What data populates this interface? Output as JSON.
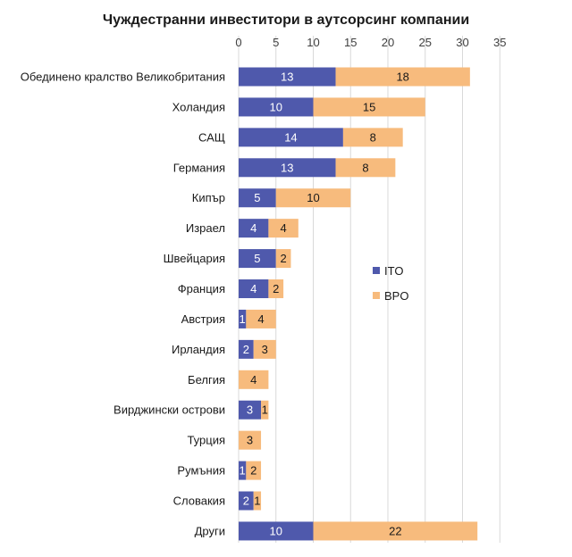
{
  "chart_data": {
    "type": "bar",
    "orientation": "horizontal",
    "stacked": true,
    "title": "Чуждестранни инвеститори в аутсорсинг компании",
    "categories": [
      "Обединено кралство Великобритания",
      "Холандия",
      "САЩ",
      "Германия",
      "Кипър",
      "Израел",
      "Швейцария",
      "Франция",
      "Австрия",
      "Ирландия",
      "Белгия",
      "Вирджински острови",
      "Турция",
      "Румъния",
      "Словакия",
      "Други"
    ],
    "series": [
      {
        "name": "ITO",
        "color": "#4f59ac",
        "values": [
          13,
          10,
          14,
          13,
          5,
          4,
          5,
          4,
          1,
          2,
          0,
          3,
          0,
          1,
          2,
          10
        ]
      },
      {
        "name": "BPO",
        "color": "#f7bb7d",
        "values": [
          18,
          15,
          8,
          8,
          10,
          4,
          2,
          2,
          4,
          3,
          4,
          1,
          3,
          2,
          1,
          22
        ]
      }
    ],
    "xlim": [
      0,
      35
    ],
    "xticks": [
      0,
      5,
      10,
      15,
      20,
      25,
      30,
      35
    ],
    "gridlines": true,
    "legend_position": "right"
  }
}
